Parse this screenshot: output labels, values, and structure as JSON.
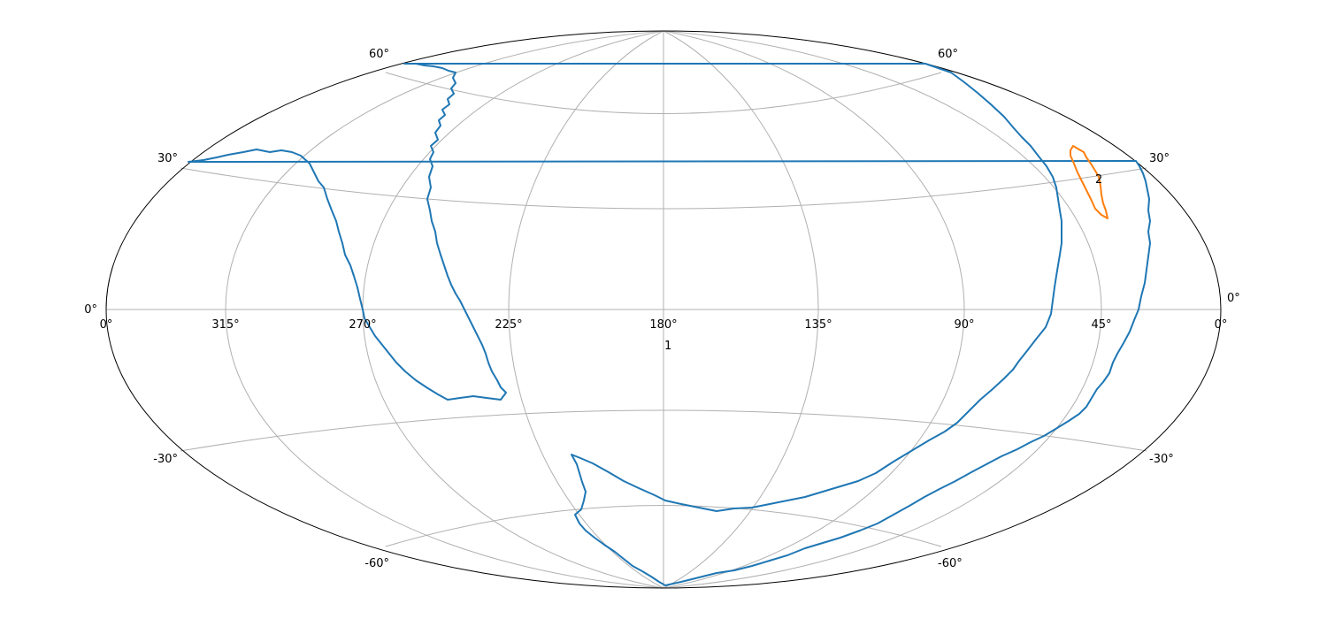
{
  "map": {
    "projection": "aitoff/hammer (ellipse)",
    "colors": {
      "frame": "#000000",
      "grid": "#b0b0b0",
      "region_1": "#1f77b4",
      "region_2": "#ff7f0e"
    },
    "longitude_labels": {
      "left_edge": "0°",
      "right_edge": "0°",
      "ticks": [
        "315°",
        "270°",
        "225°",
        "180°",
        "135°",
        "90°",
        "45°"
      ]
    },
    "latitude_labels": {
      "left": [
        "60°",
        "30°",
        "0°",
        "-30°",
        "-60°"
      ],
      "right": [
        "60°",
        "30°",
        "0°",
        "-30°",
        "-60°"
      ]
    },
    "region_labels": [
      "1",
      "2"
    ]
  }
}
